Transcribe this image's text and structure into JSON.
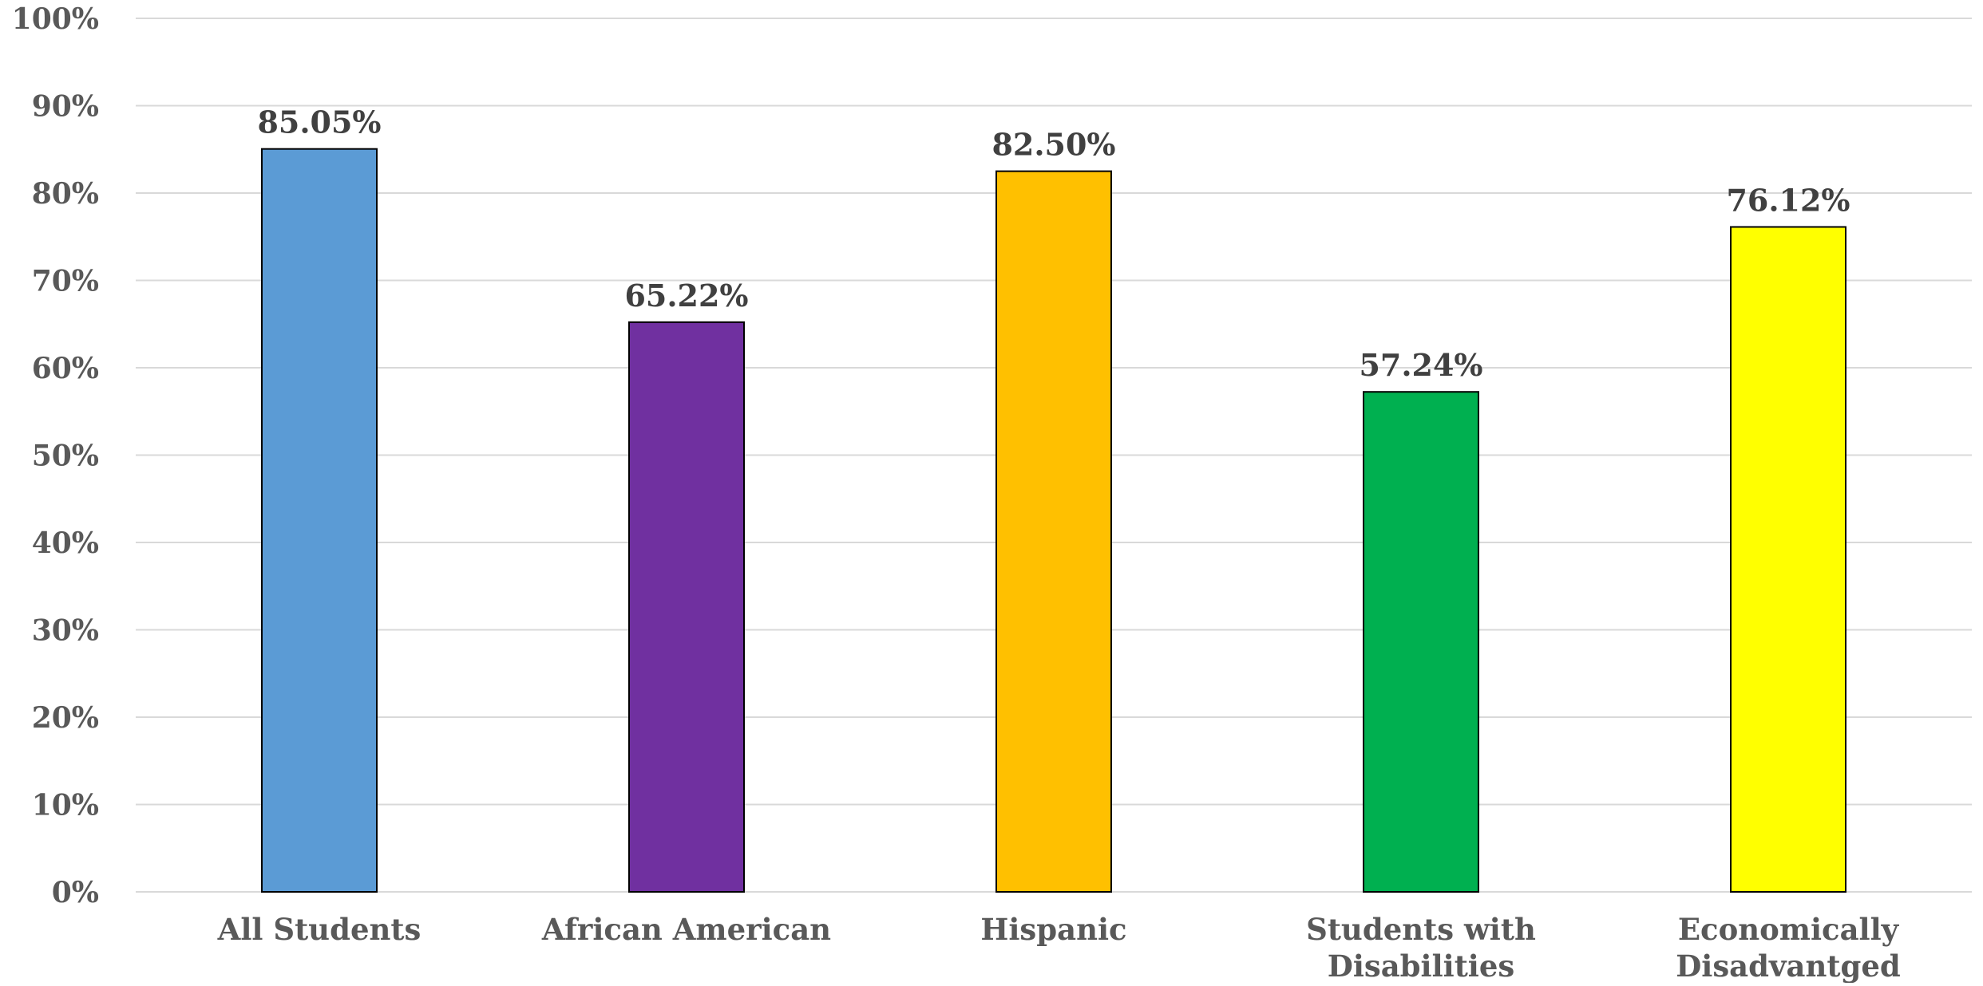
{
  "chart_data": {
    "type": "bar",
    "categories": [
      "All Students",
      "African American",
      "Hispanic",
      "Students with Disabilities",
      "Economically Disadvantged"
    ],
    "category_lines": [
      [
        "All Students"
      ],
      [
        "African American"
      ],
      [
        "Hispanic"
      ],
      [
        "Students with",
        "Disabilities"
      ],
      [
        "Economically",
        "Disadvantged"
      ]
    ],
    "values": [
      85.05,
      65.22,
      82.5,
      57.24,
      76.12
    ],
    "data_labels": [
      "85.05%",
      "65.22%",
      "82.50%",
      "57.24%",
      "76.12%"
    ],
    "colors": [
      "#5b9bd5",
      "#7030a0",
      "#ffc000",
      "#00b050",
      "#ffff00"
    ],
    "ylim": [
      0,
      100
    ],
    "y_ticks": [
      0,
      10,
      20,
      30,
      40,
      50,
      60,
      70,
      80,
      90,
      100
    ],
    "y_tick_labels": [
      "0%",
      "10%",
      "20%",
      "30%",
      "40%",
      "50%",
      "60%",
      "70%",
      "80%",
      "90%",
      "100%"
    ],
    "grid": true,
    "legend": "none",
    "title": "",
    "xlabel": "",
    "ylabel": ""
  }
}
